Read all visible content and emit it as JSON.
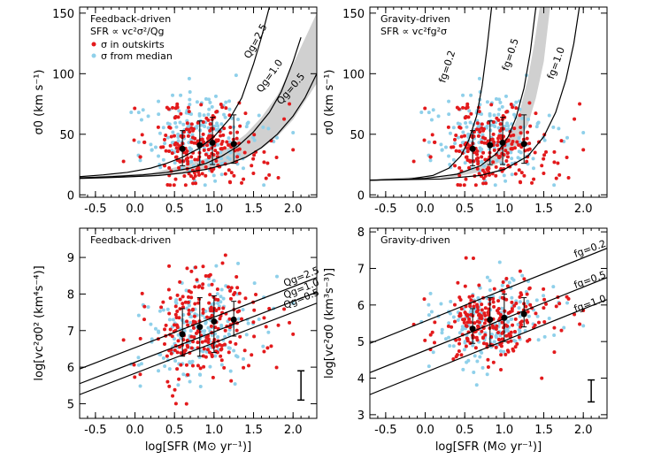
{
  "chart_data": [
    {
      "id": "tl",
      "type": "scatter",
      "title": "Feedback-driven",
      "subtitle": "SFR ∝ vc²σ²/Qg",
      "xlabel": "",
      "ylabel": "σ0 (km s⁻¹)",
      "xlim": [
        -0.7,
        2.3
      ],
      "ylim": [
        -2,
        155
      ],
      "xticks": [
        -0.5,
        0.0,
        0.5,
        1.0,
        1.5,
        2.0
      ],
      "xticklabels": [
        "-0.5",
        "0.0",
        "0.5",
        "1.0",
        "1.5",
        "2.0"
      ],
      "yticks": [
        0,
        50,
        100,
        150
      ],
      "yticklabels": [
        "0",
        "50",
        "100",
        "150"
      ],
      "legend": [
        {
          "label": "σ in outskirts",
          "color": "#e31a1c"
        },
        {
          "label": "σ from median",
          "color": "#8fd0ea"
        }
      ],
      "curves": [
        {
          "label": "Qg=2.5",
          "x": [
            -0.7,
            -0.4,
            -0.1,
            0.2,
            0.4,
            0.6,
            0.8,
            1.0,
            1.2,
            1.35,
            1.5,
            1.6,
            1.7
          ],
          "y": [
            15,
            16.5,
            18.5,
            22,
            26,
            31,
            38,
            48,
            63,
            80,
            108,
            130,
            155
          ]
        },
        {
          "label": "Qg=1.0",
          "x": [
            -0.7,
            -0.3,
            0.1,
            0.4,
            0.7,
            0.9,
            1.1,
            1.3,
            1.5,
            1.7,
            1.85,
            2.0,
            2.1
          ],
          "y": [
            14,
            15,
            16.5,
            18.5,
            22,
            26,
            32,
            40,
            52,
            68,
            85,
            110,
            130
          ]
        },
        {
          "label": "Qg=0.5",
          "x": [
            -0.7,
            -0.2,
            0.3,
            0.6,
            0.9,
            1.2,
            1.4,
            1.6,
            1.8,
            2.0,
            2.15,
            2.3
          ],
          "y": [
            13.5,
            14.5,
            16,
            18,
            21,
            26,
            31,
            39,
            50,
            65,
            80,
            100
          ]
        }
      ],
      "band": {
        "upper_x": [
          -0.7,
          0.2,
          0.6,
          0.9,
          1.2,
          1.4,
          1.6,
          1.8,
          2.0,
          2.3
        ],
        "upper_y": [
          14.5,
          18,
          24,
          30,
          40,
          50,
          64,
          82,
          108,
          150
        ],
        "lower_x": [
          -0.7,
          0.2,
          0.6,
          0.9,
          1.2,
          1.4,
          1.6,
          1.8,
          2.0,
          2.3
        ],
        "lower_y": [
          13.5,
          15,
          18,
          21,
          26,
          31,
          38,
          48,
          62,
          92
        ]
      },
      "binned_points": [
        {
          "x": 0.6,
          "y": 38,
          "err": [
            24,
            53
          ]
        },
        {
          "x": 0.82,
          "y": 41,
          "err": [
            25,
            61
          ]
        },
        {
          "x": 0.98,
          "y": 43,
          "err": [
            25,
            64
          ]
        },
        {
          "x": 1.25,
          "y": 42,
          "err": [
            26,
            66
          ]
        }
      ]
    },
    {
      "id": "tr",
      "type": "scatter",
      "title": "Gravity-driven",
      "subtitle": "SFR ∝ vc²fg²σ",
      "xlabel": "",
      "ylabel": "σ0 (km s⁻¹)",
      "xlim": [
        -0.7,
        2.3
      ],
      "ylim": [
        -2,
        155
      ],
      "xticks": [
        -0.5,
        0.0,
        0.5,
        1.0,
        1.5,
        2.0
      ],
      "xticklabels": [
        "-0.5",
        "0.0",
        "0.5",
        "1.0",
        "1.5",
        "2.0"
      ],
      "yticks": [
        0,
        50,
        100,
        150
      ],
      "yticklabels": [
        "0",
        "50",
        "100",
        "150"
      ],
      "curves": [
        {
          "label": "fg=0.2",
          "x": [
            -0.7,
            -0.2,
            0.1,
            0.3,
            0.45,
            0.55,
            0.65,
            0.72,
            0.78,
            0.84
          ],
          "y": [
            12,
            13,
            16,
            22,
            32,
            45,
            65,
            90,
            120,
            155
          ]
        },
        {
          "label": "fg=0.5",
          "x": [
            -0.7,
            0.0,
            0.4,
            0.7,
            0.9,
            1.05,
            1.15,
            1.25,
            1.33,
            1.4
          ],
          "y": [
            12,
            13.5,
            17,
            24,
            34,
            48,
            64,
            88,
            118,
            155
          ]
        },
        {
          "label": "fg=1.0",
          "x": [
            -0.7,
            0.2,
            0.7,
            1.0,
            1.3,
            1.5,
            1.65,
            1.78,
            1.88,
            1.95
          ],
          "y": [
            12,
            13,
            16,
            21,
            32,
            48,
            68,
            95,
            125,
            155
          ]
        }
      ],
      "band": {
        "upper_x": [
          -0.7,
          0.3,
          0.7,
          0.95,
          1.1,
          1.2,
          1.3,
          1.38,
          1.45
        ],
        "upper_y": [
          13,
          16,
          24,
          36,
          52,
          70,
          96,
          125,
          155
        ],
        "lower_x": [
          -0.7,
          0.3,
          0.7,
          0.95,
          1.15,
          1.3,
          1.4,
          1.5,
          1.58
        ],
        "lower_y": [
          12,
          14,
          19,
          27,
          40,
          58,
          80,
          110,
          155
        ]
      },
      "binned_points": [
        {
          "x": 0.6,
          "y": 38,
          "err": [
            24,
            53
          ]
        },
        {
          "x": 0.82,
          "y": 41,
          "err": [
            25,
            61
          ]
        },
        {
          "x": 0.98,
          "y": 43,
          "err": [
            25,
            64
          ]
        },
        {
          "x": 1.25,
          "y": 42,
          "err": [
            26,
            66
          ]
        }
      ]
    },
    {
      "id": "bl",
      "type": "scatter",
      "title": "Feedback-driven",
      "xlabel": "log[SFR (M⊙ yr⁻¹)]",
      "ylabel": "log[vc²σ0² (km⁴s⁻⁴)]",
      "xlim": [
        -0.7,
        2.3
      ],
      "ylim": [
        4.6,
        9.8
      ],
      "xticks": [
        -0.5,
        0.0,
        0.5,
        1.0,
        1.5,
        2.0
      ],
      "xticklabels": [
        "-0.5",
        "0.0",
        "0.5",
        "1.0",
        "1.5",
        "2.0"
      ],
      "yticks": [
        5,
        6,
        7,
        8,
        9
      ],
      "yticklabels": [
        "5",
        "6",
        "7",
        "8",
        "9"
      ],
      "curves": [
        {
          "label": "Qg=2.5",
          "x": [
            -0.7,
            2.3
          ],
          "y": [
            5.95,
            8.45
          ]
        },
        {
          "label": "Qg=1.0",
          "x": [
            -0.7,
            2.3
          ],
          "y": [
            5.55,
            8.05
          ]
        },
        {
          "label": "Qg=0.5",
          "x": [
            -0.7,
            2.3
          ],
          "y": [
            5.25,
            7.75
          ]
        }
      ],
      "binned_points": [
        {
          "x": 0.6,
          "y": 6.9,
          "err": [
            6.3,
            7.6
          ]
        },
        {
          "x": 0.82,
          "y": 7.1,
          "err": [
            6.3,
            7.9
          ]
        },
        {
          "x": 1.0,
          "y": 7.25,
          "err": [
            6.4,
            7.95
          ]
        },
        {
          "x": 1.25,
          "y": 7.3,
          "err": [
            6.85,
            7.8
          ]
        }
      ],
      "error_bar_sample": {
        "x": 2.1,
        "y": [
          5.1,
          5.9
        ]
      }
    },
    {
      "id": "br",
      "type": "scatter",
      "title": "Gravity-driven",
      "xlabel": "log[SFR (M⊙ yr⁻¹)]",
      "ylabel": "log[vc²σ0 (km³s⁻³)]",
      "xlim": [
        -0.7,
        2.3
      ],
      "ylim": [
        2.9,
        8.1
      ],
      "xticks": [
        -0.5,
        0.0,
        0.5,
        1.0,
        1.5,
        2.0
      ],
      "xticklabels": [
        "-0.5",
        "0.0",
        "0.5",
        "1.0",
        "1.5",
        "2.0"
      ],
      "yticks": [
        3,
        4,
        5,
        6,
        7,
        8
      ],
      "yticklabels": [
        "3",
        "4",
        "5",
        "6",
        "7",
        "8"
      ],
      "curves": [
        {
          "label": "fg=0.2",
          "x": [
            -0.7,
            2.3
          ],
          "y": [
            4.95,
            7.55
          ]
        },
        {
          "label": "fg=0.5",
          "x": [
            -0.7,
            2.3
          ],
          "y": [
            4.15,
            6.75
          ]
        },
        {
          "label": "fg=1.0",
          "x": [
            -0.7,
            2.3
          ],
          "y": [
            3.55,
            6.15
          ]
        }
      ],
      "binned_points": [
        {
          "x": 0.6,
          "y": 5.35,
          "err": [
            4.95,
            5.9
          ]
        },
        {
          "x": 0.82,
          "y": 5.6,
          "err": [
            4.9,
            6.2
          ]
        },
        {
          "x": 1.0,
          "y": 5.65,
          "err": [
            5.0,
            6.3
          ]
        },
        {
          "x": 1.25,
          "y": 5.75,
          "err": [
            5.4,
            6.2
          ]
        }
      ],
      "error_bar_sample": {
        "x": 2.1,
        "y": [
          3.35,
          3.95
        ]
      }
    }
  ]
}
